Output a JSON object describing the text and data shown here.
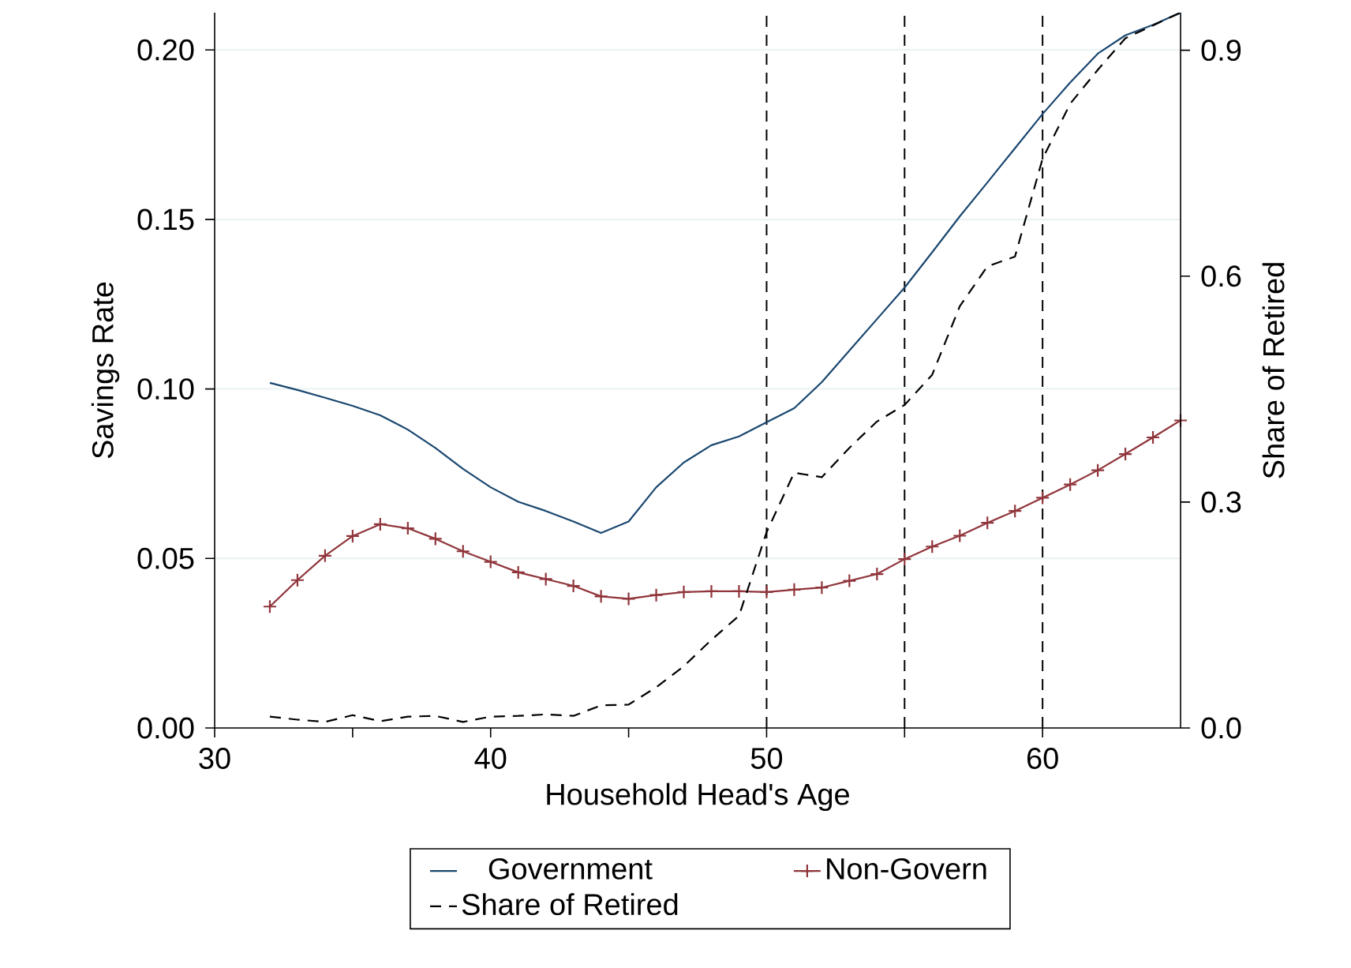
{
  "chart_data": {
    "type": "line",
    "xlabel": "Household Head's Age",
    "ylabel": "Savings Rate",
    "y2label": "Share of Retired",
    "x": [
      32,
      33,
      34,
      35,
      36,
      37,
      38,
      39,
      40,
      41,
      42,
      43,
      44,
      45,
      46,
      47,
      48,
      49,
      50,
      51,
      52,
      53,
      54,
      55,
      56,
      57,
      58,
      59,
      60,
      61,
      62,
      63,
      64,
      65
    ],
    "series": [
      {
        "name": "Government",
        "color": "#1a476f",
        "marker": "none",
        "line_style": "solid",
        "values": [
          0.1018,
          0.0997,
          0.0974,
          0.095,
          0.0922,
          0.088,
          0.0826,
          0.0764,
          0.071,
          0.0667,
          0.064,
          0.0609,
          0.0575,
          0.0609,
          0.071,
          0.0783,
          0.0834,
          0.086,
          0.0902,
          0.0943,
          0.102,
          0.1113,
          0.1206,
          0.1299,
          0.1403,
          0.1509,
          0.1609,
          0.171,
          0.1811,
          0.1904,
          0.1989,
          0.2043,
          0.2074,
          0.211
        ]
      },
      {
        "name": "Non-Govern",
        "color": "#90353b",
        "marker": "cross",
        "line_style": "solid",
        "values": [
          0.0358,
          0.0436,
          0.0508,
          0.0566,
          0.0601,
          0.0589,
          0.0558,
          0.0521,
          0.049,
          0.0459,
          0.0439,
          0.0419,
          0.0388,
          0.0381,
          0.0392,
          0.0401,
          0.0403,
          0.0403,
          0.0401,
          0.0408,
          0.0414,
          0.0434,
          0.0454,
          0.0498,
          0.0535,
          0.0567,
          0.0605,
          0.064,
          0.0679,
          0.0718,
          0.076,
          0.0808,
          0.0857,
          0.0907
        ]
      },
      {
        "name": "Share of Retired",
        "color": "#000000",
        "marker": "none",
        "line_style": "dashed",
        "axis": "y2",
        "values": [
          0.015,
          0.011,
          0.008,
          0.017,
          0.009,
          0.015,
          0.016,
          0.008,
          0.015,
          0.016,
          0.018,
          0.016,
          0.03,
          0.031,
          0.054,
          0.082,
          0.117,
          0.149,
          0.26,
          0.339,
          0.333,
          0.372,
          0.407,
          0.429,
          0.469,
          0.56,
          0.613,
          0.626,
          0.756,
          0.829,
          0.874,
          0.916,
          0.933,
          0.95
        ]
      }
    ],
    "xlim": [
      30,
      65
    ],
    "xticks": [
      30,
      {
        "value": 35,
        "label": null
      },
      40,
      {
        "value": 45,
        "label": null
      },
      50,
      {
        "value": 55,
        "label": null
      },
      60
    ],
    "ylim": [
      0,
      0.211
    ],
    "yticks": [
      {
        "value": 0,
        "label": "0.00"
      },
      {
        "value": 0.05,
        "label": "0.05"
      },
      {
        "value": 0.1,
        "label": "0.10"
      },
      {
        "value": 0.15,
        "label": "0.15"
      },
      {
        "value": 0.2,
        "label": "0.20"
      }
    ],
    "y2lim": [
      0,
      0.95
    ],
    "y2ticks": [
      {
        "value": 0,
        "label": "0.0"
      },
      {
        "value": 0.3,
        "label": "0.3"
      },
      {
        "value": 0.6,
        "label": "0.6"
      },
      {
        "value": 0.9,
        "label": "0.9"
      }
    ],
    "ref_lines": [
      {
        "axis": "x",
        "value": 50,
        "color": "#000000",
        "line_style": "dashed"
      },
      {
        "axis": "x",
        "value": 55,
        "color": "#000000",
        "line_style": "dashed"
      },
      {
        "axis": "x",
        "value": 60,
        "color": "#000000",
        "line_style": "dashed"
      }
    ],
    "grid": "y",
    "legend": "bottom"
  }
}
